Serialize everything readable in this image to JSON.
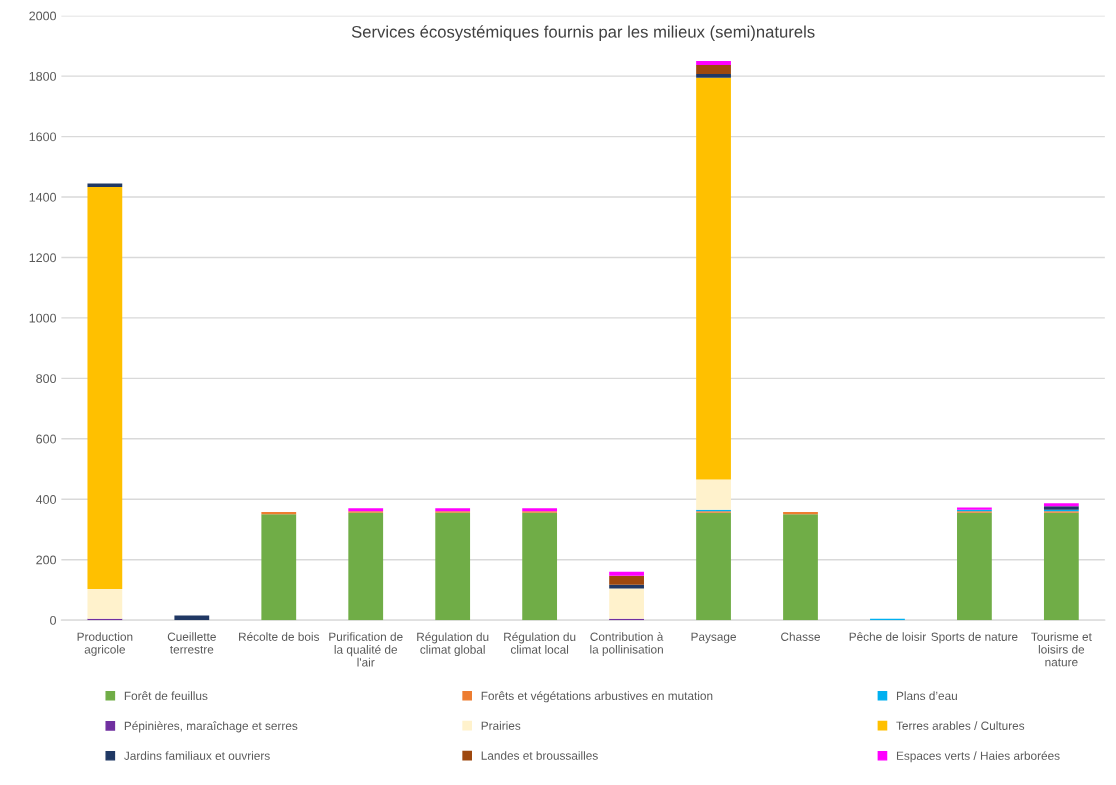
{
  "chart_data": {
    "type": "bar",
    "stacked": true,
    "title": "Services écosystémiques fournis par les milieux (semi)naturels",
    "categories": [
      "Production agricole",
      "Cueillette terrestre",
      "Récolte de bois",
      "Purification de la qualité de l'air",
      "Régulation du climat global",
      "Régulation du climat local",
      "Contribution à la pollinisation",
      "Paysage",
      "Chasse",
      "Pêche de loisir",
      "Sports de nature",
      "Tourisme et loisirs de nature"
    ],
    "series": [
      {
        "name": "Forêt de feuillus",
        "color": "#70ad47",
        "values": [
          0,
          0,
          350,
          355,
          355,
          355,
          0,
          355,
          350,
          0,
          355,
          355
        ]
      },
      {
        "name": "Forêts et végétations arbustives en mutation",
        "color": "#ed7d31",
        "values": [
          0,
          0,
          8,
          5,
          5,
          5,
          0,
          5,
          8,
          0,
          5,
          5
        ]
      },
      {
        "name": "Plans d’eau",
        "color": "#00b0f0",
        "values": [
          0,
          0,
          0,
          0,
          0,
          0,
          0,
          5,
          0,
          5,
          5,
          5
        ]
      },
      {
        "name": "Pépinières, maraîchage et serres",
        "color": "#7030a0",
        "values": [
          5,
          0,
          0,
          0,
          0,
          0,
          5,
          0,
          0,
          0,
          0,
          0
        ]
      },
      {
        "name": "Prairies",
        "color": "#fff2cc",
        "values": [
          98,
          0,
          0,
          0,
          0,
          0,
          100,
          100,
          0,
          0,
          0,
          0
        ]
      },
      {
        "name": "Terres arables / Cultures",
        "color": "#ffc000",
        "values": [
          1330,
          0,
          0,
          0,
          0,
          0,
          0,
          1330,
          0,
          0,
          0,
          0
        ]
      },
      {
        "name": "Jardins familiaux et ouvriers",
        "color": "#203864",
        "values": [
          12,
          15,
          0,
          0,
          0,
          0,
          12,
          12,
          0,
          0,
          0,
          12
        ]
      },
      {
        "name": "Landes et broussailles",
        "color": "#9e480e",
        "values": [
          0,
          0,
          0,
          0,
          0,
          0,
          30,
          30,
          0,
          0,
          0,
          0
        ]
      },
      {
        "name": "Espaces verts / Haies arborées",
        "color": "#ff00ff",
        "values": [
          0,
          0,
          0,
          10,
          10,
          10,
          13,
          13,
          0,
          0,
          8,
          10
        ]
      }
    ],
    "ylim": [
      0,
      2000
    ],
    "yticks": [
      0,
      200,
      400,
      600,
      800,
      1000,
      1200,
      1400,
      1600,
      1800,
      2000
    ],
    "grid": "y",
    "legend": "bottom"
  }
}
